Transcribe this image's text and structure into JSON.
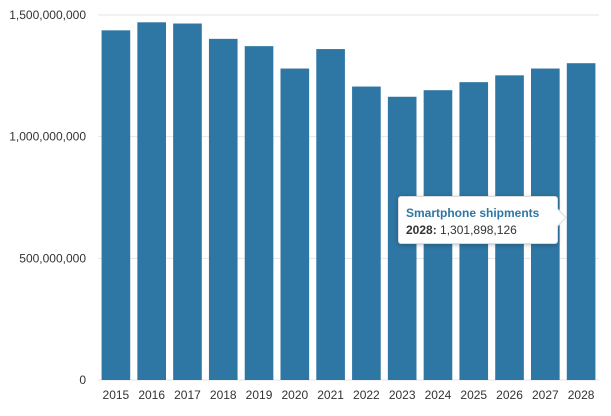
{
  "chart_data": {
    "type": "bar",
    "categories": [
      "2015",
      "2016",
      "2017",
      "2018",
      "2019",
      "2020",
      "2021",
      "2022",
      "2023",
      "2024",
      "2025",
      "2026",
      "2027",
      "2028"
    ],
    "series": [
      {
        "name": "Smartphone shipments",
        "values": [
          1437000000,
          1470000000,
          1465000000,
          1402000000,
          1372000000,
          1280000000,
          1360000000,
          1206000000,
          1164000000,
          1191000000,
          1224000000,
          1252000000,
          1280000000,
          1301898126
        ]
      }
    ],
    "ylim": [
      0,
      1500000000
    ],
    "yticks": [
      0,
      500000000,
      1000000000,
      1500000000
    ],
    "ytick_labels": [
      "0",
      "500,000,000",
      "1,000,000,000",
      "1,500,000,000"
    ],
    "grid": true,
    "bar_color": "#2e76a3"
  },
  "tooltip": {
    "title": "Smartphone shipments",
    "label": "2028:",
    "value": "1,301,898,126"
  }
}
